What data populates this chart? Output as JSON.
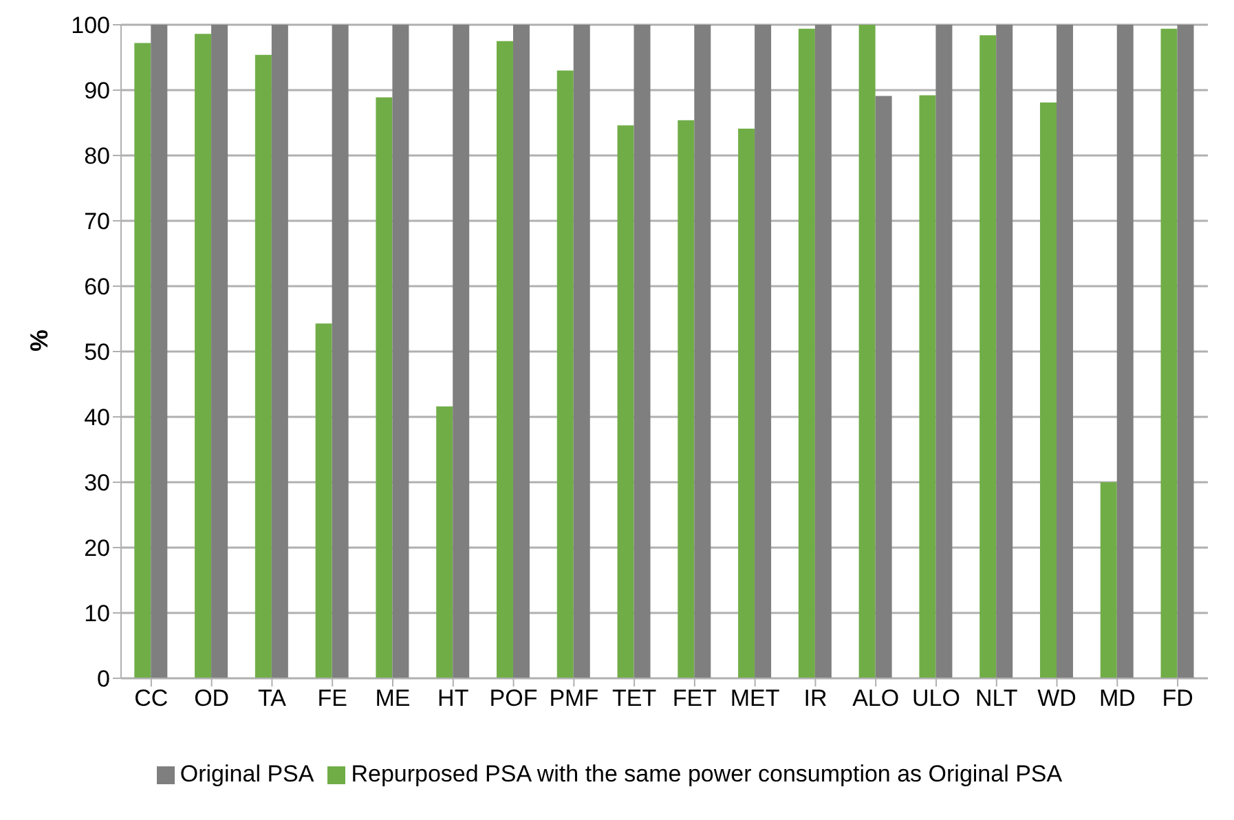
{
  "chart_data": {
    "type": "bar",
    "ylabel": "%",
    "categories": [
      "CC",
      "OD",
      "TA",
      "FE",
      "ME",
      "HT",
      "POF",
      "PMF",
      "TET",
      "FET",
      "MET",
      "IR",
      "ALO",
      "ULO",
      "NLT",
      "WD",
      "MD",
      "FD"
    ],
    "series": [
      {
        "name": "Repurposed PSA with the same power consumption as Original PSA",
        "color": "#70ad47",
        "values": [
          97.2,
          98.6,
          95.4,
          54.3,
          88.9,
          41.6,
          97.5,
          93.0,
          84.6,
          85.4,
          84.1,
          99.4,
          100,
          89.2,
          98.4,
          88.1,
          30,
          99.4
        ]
      },
      {
        "name": "Original PSA",
        "color": "#7f7f7f",
        "values": [
          100,
          100,
          100,
          100,
          100,
          100,
          100,
          100,
          100,
          100,
          100,
          100,
          89.1,
          100,
          100,
          100,
          100,
          100
        ]
      }
    ],
    "ylim": [
      0,
      100
    ],
    "yticks": [
      0,
      10,
      20,
      30,
      40,
      50,
      60,
      70,
      80,
      90,
      100
    ],
    "grid": "y",
    "legend": "bottom"
  }
}
